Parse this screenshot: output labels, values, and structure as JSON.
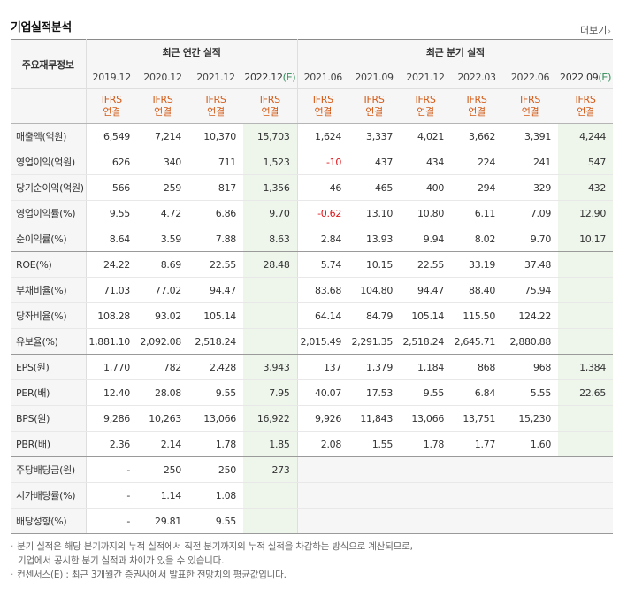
{
  "title": "기업실적분석",
  "more_label": "더보기",
  "row_header": "주요재무정보",
  "groups": {
    "annual": "최근 연간 실적",
    "quarterly": "최근 분기 실적"
  },
  "periods": [
    "2019.12",
    "2020.12",
    "2021.12",
    "2022.12(E)",
    "2021.06",
    "2021.09",
    "2021.12",
    "2022.03",
    "2022.06",
    "2022.09(E)"
  ],
  "standard": {
    "line1": "IFRS",
    "line2": "연결"
  },
  "rows": [
    {
      "label": "매출액(억원)",
      "values": [
        "6,549",
        "7,214",
        "10,370",
        "15,703",
        "1,624",
        "3,337",
        "4,021",
        "3,662",
        "3,391",
        "4,244"
      ]
    },
    {
      "label": "영업이익(억원)",
      "values": [
        "626",
        "340",
        "711",
        "1,523",
        "-10",
        "437",
        "434",
        "224",
        "241",
        "547"
      ]
    },
    {
      "label": "당기순이익(억원)",
      "values": [
        "566",
        "259",
        "817",
        "1,356",
        "46",
        "465",
        "400",
        "294",
        "329",
        "432"
      ]
    },
    {
      "label": "영업이익률(%)",
      "values": [
        "9.55",
        "4.72",
        "6.86",
        "9.70",
        "-0.62",
        "13.10",
        "10.80",
        "6.11",
        "7.09",
        "12.90"
      ]
    },
    {
      "label": "순이익률(%)",
      "values": [
        "8.64",
        "3.59",
        "7.88",
        "8.63",
        "2.84",
        "13.93",
        "9.94",
        "8.02",
        "9.70",
        "10.17"
      ]
    },
    {
      "label": "ROE(%)",
      "values": [
        "24.22",
        "8.69",
        "22.55",
        "28.48",
        "5.74",
        "10.15",
        "22.55",
        "33.19",
        "37.48",
        ""
      ]
    },
    {
      "label": "부채비율(%)",
      "values": [
        "71.03",
        "77.02",
        "94.47",
        "",
        "83.68",
        "104.80",
        "94.47",
        "88.40",
        "75.94",
        ""
      ]
    },
    {
      "label": "당좌비율(%)",
      "values": [
        "108.28",
        "93.02",
        "105.14",
        "",
        "64.14",
        "84.79",
        "105.14",
        "115.50",
        "124.22",
        ""
      ]
    },
    {
      "label": "유보율(%)",
      "values": [
        "1,881.10",
        "2,092.08",
        "2,518.24",
        "",
        "2,015.49",
        "2,291.35",
        "2,518.24",
        "2,645.71",
        "2,880.88",
        ""
      ]
    },
    {
      "label": "EPS(원)",
      "values": [
        "1,770",
        "782",
        "2,428",
        "3,943",
        "137",
        "1,379",
        "1,184",
        "868",
        "968",
        "1,384"
      ]
    },
    {
      "label": "PER(배)",
      "values": [
        "12.40",
        "28.08",
        "9.55",
        "7.95",
        "40.07",
        "17.53",
        "9.55",
        "6.84",
        "5.55",
        "22.65"
      ]
    },
    {
      "label": "BPS(원)",
      "values": [
        "9,286",
        "10,263",
        "13,066",
        "16,922",
        "9,926",
        "11,843",
        "13,066",
        "13,751",
        "15,230",
        ""
      ]
    },
    {
      "label": "PBR(배)",
      "values": [
        "2.36",
        "2.14",
        "1.78",
        "1.85",
        "2.08",
        "1.55",
        "1.78",
        "1.77",
        "1.60",
        ""
      ]
    },
    {
      "label": "주당배당금(원)",
      "values": [
        "-",
        "250",
        "250",
        "273",
        "",
        "",
        "",
        "",
        "",
        ""
      ]
    },
    {
      "label": "시가배당률(%)",
      "values": [
        "-",
        "1.14",
        "1.08",
        "",
        "",
        "",
        "",
        "",
        "",
        ""
      ]
    },
    {
      "label": "배당성향(%)",
      "values": [
        "-",
        "29.81",
        "9.55",
        "",
        "",
        "",
        "",
        "",
        "",
        ""
      ]
    }
  ],
  "notes": {
    "note1_line1": "분기 실적은 해당 분기까지의 누적 실적에서 직전 분기까지의 누적 실적을 차감하는 방식으로 계산되므로,",
    "note1_line2": "기업에서 공시한 분기 실적과 차이가 있을 수 있습니다.",
    "note2": "컨센서스(E) : 최근 3개월간 증권사에서 발표한 전망치의 평균값입니다."
  },
  "colors": {
    "negative": "#e0141a",
    "standard_text": "#d45b17",
    "estimate_bg": "#eef6ec"
  }
}
